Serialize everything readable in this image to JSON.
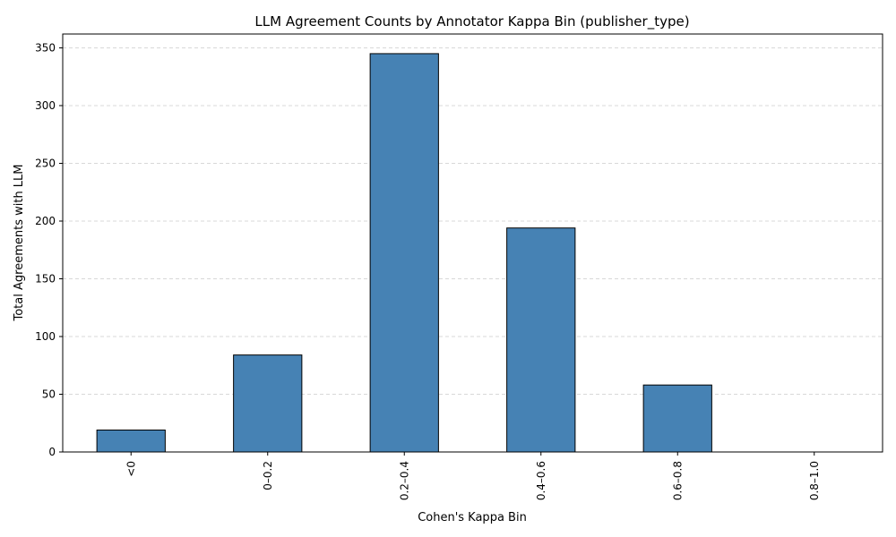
{
  "chart_data": {
    "type": "bar",
    "title": "LLM Agreement Counts by Annotator Kappa Bin (publisher_type)",
    "xlabel": "Cohen's Kappa Bin",
    "ylabel": "Total Agreements with LLM",
    "categories": [
      "<0",
      "0–0.2",
      "0.2–0.4",
      "0.4–0.6",
      "0.6–0.8",
      "0.8–1.0"
    ],
    "values": [
      19,
      84,
      345,
      194,
      58,
      0
    ],
    "ylim": [
      0,
      362
    ],
    "yticks": [
      0,
      50,
      100,
      150,
      200,
      250,
      300,
      350
    ],
    "grid": true,
    "grid_axis": "y",
    "x_tick_rotation": 90,
    "bar_color": "#4682b4",
    "bar_edge_color": "#000000",
    "grid_color": "#cccccc"
  }
}
